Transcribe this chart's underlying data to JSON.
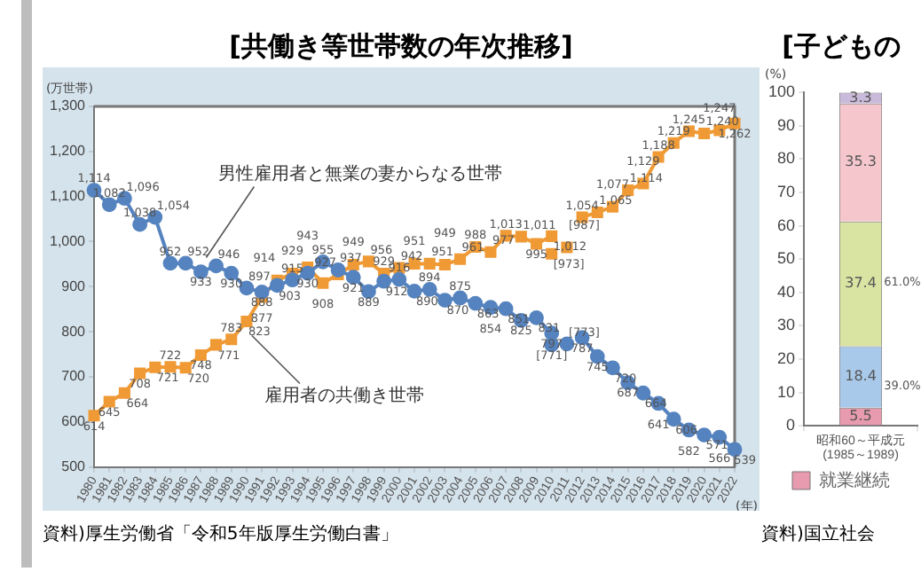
{
  "chart_data": [
    {
      "type": "line",
      "title": "[共働き等世帯数の年次推移]",
      "ylabel": "(万世帯)",
      "xlabel": "(年)",
      "categories": [
        "1980",
        "1981",
        "1982",
        "1983",
        "1984",
        "1985",
        "1986",
        "1987",
        "1988",
        "1989",
        "1990",
        "1991",
        "1992",
        "1993",
        "1994",
        "1995",
        "1996",
        "1997",
        "1998",
        "1999",
        "2000",
        "2001",
        "2002",
        "2003",
        "2004",
        "2005",
        "2006",
        "2007",
        "2008",
        "2009",
        "2010",
        "2011",
        "2012",
        "2013",
        "2014",
        "2015",
        "2016",
        "2017",
        "2018",
        "2019",
        "2020",
        "2021",
        "2022"
      ],
      "series": [
        {
          "name": "男性雇用者と無業の妻からなる世帯",
          "color": "#5583bf",
          "marker": "circle",
          "values": [
            1114,
            1082,
            1096,
            1038,
            1054,
            952,
            952,
            933,
            946,
            930,
            897,
            888,
            903,
            915,
            930,
            955,
            937,
            921,
            889,
            912,
            916,
            890,
            894,
            870,
            875,
            863,
            854,
            851,
            825,
            831,
            797,
            null,
            787,
            745,
            720,
            687,
            664,
            641,
            606,
            582,
            571,
            566,
            539
          ],
          "value_labels": [
            "1,114",
            "1,082",
            "1,096",
            "1,038",
            "1,054",
            "952",
            "952",
            "933",
            "946",
            "930",
            "897",
            "888",
            "903",
            "915",
            "930",
            "955",
            "937",
            "921",
            "889",
            "912",
            "916",
            "890",
            "894",
            "870",
            "875",
            "863",
            "854",
            "851",
            "825",
            "831",
            "797",
            null,
            "787",
            "745",
            "720",
            "687",
            "664",
            "641",
            "606",
            "582",
            "571",
            "566",
            "539"
          ]
        },
        {
          "name": "雇用者の共働き世帯",
          "color": "#ef9a35",
          "marker": "square",
          "values": [
            614,
            645,
            664,
            708,
            721,
            722,
            720,
            748,
            771,
            783,
            823,
            877,
            914,
            929,
            943,
            908,
            927,
            949,
            956,
            929,
            942,
            951,
            951,
            949,
            961,
            988,
            977,
            1013,
            1011,
            995,
            1012,
            null,
            1054,
            1065,
            1077,
            1114,
            1129,
            1188,
            1219,
            1245,
            1240,
            1247,
            1262
          ],
          "value_labels": [
            "614",
            "645",
            "664",
            "708",
            "721",
            "722",
            "720",
            "748",
            "771",
            "783",
            "823",
            "877",
            "914",
            "929",
            "943",
            "908",
            "927",
            "949",
            "956",
            "929",
            "942",
            "951",
            "951",
            "949",
            "961",
            "988",
            "977",
            "1,013",
            "1,011",
            "995",
            "1,012",
            null,
            "1,054",
            "1,065",
            "1,077",
            "1,114",
            "1,129",
            "1,188",
            "1,219",
            "1,245",
            "1,240",
            "1,247",
            "1,262"
          ]
        },
        {
          "type": "scatter",
          "color": "#5583bf",
          "marker": "circle",
          "values": [
            null,
            null,
            null,
            null,
            null,
            null,
            null,
            null,
            null,
            null,
            null,
            null,
            null,
            null,
            null,
            null,
            null,
            null,
            null,
            null,
            null,
            null,
            null,
            null,
            null,
            null,
            null,
            null,
            null,
            null,
            771,
            773,
            null,
            null,
            null,
            null,
            null,
            null,
            null,
            null,
            null,
            null,
            null
          ],
          "value_labels": [
            null,
            null,
            null,
            null,
            null,
            null,
            null,
            null,
            null,
            null,
            null,
            null,
            null,
            null,
            null,
            null,
            null,
            null,
            null,
            null,
            null,
            null,
            null,
            null,
            null,
            null,
            null,
            null,
            null,
            null,
            "[771]",
            "[773]",
            null,
            null,
            null,
            null,
            null,
            null,
            null,
            null,
            null,
            null,
            null
          ]
        },
        {
          "type": "scatter",
          "color": "#ef9a35",
          "marker": "square",
          "values": [
            null,
            null,
            null,
            null,
            null,
            null,
            null,
            null,
            null,
            null,
            null,
            null,
            null,
            null,
            null,
            null,
            null,
            null,
            null,
            null,
            null,
            null,
            null,
            null,
            null,
            null,
            null,
            null,
            null,
            null,
            973,
            987,
            null,
            null,
            null,
            null,
            null,
            null,
            null,
            null,
            null,
            null,
            null
          ],
          "value_labels": [
            null,
            null,
            null,
            null,
            null,
            null,
            null,
            null,
            null,
            null,
            null,
            null,
            null,
            null,
            null,
            null,
            null,
            null,
            null,
            null,
            null,
            null,
            null,
            null,
            null,
            null,
            null,
            null,
            null,
            null,
            "[973]",
            "[987]",
            null,
            null,
            null,
            null,
            null,
            null,
            null,
            null,
            null,
            null,
            null
          ]
        }
      ],
      "ylim": [
        500,
        1300
      ],
      "yticks": [
        500,
        600,
        700,
        800,
        900,
        {
          "value": 1000,
          "label": "1,000"
        },
        {
          "value": 1100,
          "label": "1,100"
        },
        {
          "value": 1200,
          "label": "1,200"
        },
        {
          "value": 1300,
          "label": "1,300"
        }
      ],
      "legend": false,
      "annotations": [
        "資料)厚生労働省「令和5年版厚生労働白書」"
      ]
    },
    {
      "type": "bar",
      "stacked": true,
      "title": "[子どもの",
      "ylabel": "(%)",
      "categories": [
        "昭和60～平成元\n(1985～1989)"
      ],
      "series": [
        {
          "name": "就業継続",
          "color": "#e89aae",
          "values": [
            5.5
          ]
        },
        {
          "color": "#a9c9ea",
          "values": [
            18.4
          ]
        },
        {
          "color": "#d9e3a2",
          "values": [
            37.4
          ]
        },
        {
          "color": "#f5c6cc",
          "values": [
            35.3
          ]
        },
        {
          "color": "#c9b9da",
          "values": [
            3.3
          ]
        }
      ],
      "ylim": [
        0,
        100
      ],
      "yticks": [
        0,
        10,
        20,
        30,
        40,
        50,
        60,
        70,
        80,
        90,
        100
      ],
      "data_labels": true,
      "legend": "bottom",
      "annotations": [
        "61.0%",
        "39.0%",
        "資料)国立社会"
      ]
    }
  ]
}
